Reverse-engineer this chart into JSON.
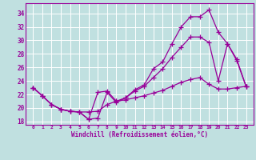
{
  "x": [
    0,
    1,
    2,
    3,
    4,
    5,
    6,
    7,
    8,
    9,
    10,
    11,
    12,
    13,
    14,
    15,
    16,
    17,
    18,
    19,
    20,
    21,
    22,
    23
  ],
  "line1": [
    23.0,
    21.8,
    20.5,
    19.8,
    19.5,
    19.4,
    18.3,
    18.5,
    22.3,
    20.8,
    21.5,
    22.7,
    23.4,
    25.8,
    26.8,
    29.5,
    32.0,
    33.5,
    33.5,
    34.5,
    31.2,
    29.5,
    27.0,
    23.2
  ],
  "line2": [
    23.0,
    21.8,
    20.5,
    19.8,
    19.5,
    19.4,
    18.3,
    22.3,
    22.5,
    21.0,
    21.5,
    22.5,
    23.2,
    24.5,
    25.8,
    27.5,
    29.0,
    30.5,
    30.5,
    29.7,
    24.0,
    29.5,
    27.2,
    23.2
  ],
  "line3": [
    23.0,
    21.8,
    20.5,
    19.8,
    19.5,
    19.4,
    19.4,
    19.5,
    20.5,
    21.0,
    21.2,
    21.5,
    21.8,
    22.2,
    22.6,
    23.2,
    23.8,
    24.2,
    24.5,
    23.5,
    22.8,
    22.8,
    23.0,
    23.2
  ],
  "line_color": "#990099",
  "bg_color": "#c0e0e0",
  "grid_color": "#b0d8d8",
  "plot_bg": "#d0ecec",
  "ylim": [
    17.5,
    35.5
  ],
  "yticks": [
    18,
    20,
    22,
    24,
    26,
    28,
    30,
    32,
    34
  ],
  "xticks": [
    0,
    1,
    2,
    3,
    4,
    5,
    6,
    7,
    8,
    9,
    10,
    11,
    12,
    13,
    14,
    15,
    16,
    17,
    18,
    19,
    20,
    21,
    22,
    23
  ],
  "xlabel": "Windchill (Refroidissement éolien,°C)",
  "marker": "+",
  "marker_size": 4
}
